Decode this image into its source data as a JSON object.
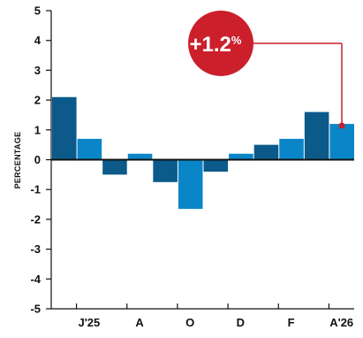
{
  "chart_data": {
    "type": "bar",
    "title": "",
    "xlabel": "",
    "ylabel": "PERCENTAGE",
    "ylim": [
      -5,
      5
    ],
    "y_ticks": [
      5,
      4,
      3,
      2,
      1,
      0,
      -1,
      -2,
      -3,
      -4,
      -5
    ],
    "grid": false,
    "legend": "none",
    "colors": {
      "dark": "#0b5a8a",
      "light": "#0a86c8",
      "callout": "#cc1f2c",
      "axis": "#111111"
    },
    "values": [
      2.1,
      0.7,
      -0.5,
      0.2,
      -0.75,
      -1.65,
      -0.4,
      0.2,
      0.5,
      0.7,
      1.6,
      1.2
    ],
    "x_labels": [
      "J'25",
      "A",
      "O",
      "D",
      "F",
      "A'26"
    ],
    "callout": {
      "value_text": "+1.2",
      "unit": "%"
    }
  }
}
